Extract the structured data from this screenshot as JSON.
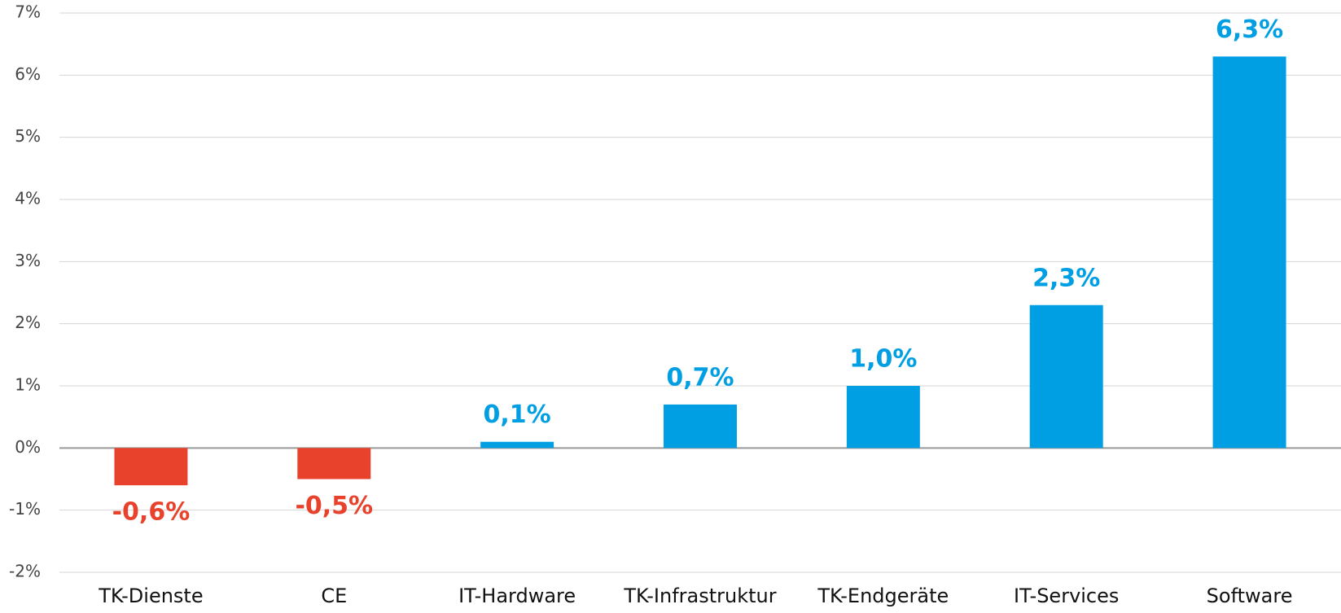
{
  "chart_data": {
    "type": "bar",
    "categories": [
      "TK-Dienste",
      "CE",
      "IT-Hardware",
      "TK-Infrastruktur",
      "TK-Endgeräte",
      "IT-Services",
      "Software"
    ],
    "values": [
      -0.6,
      -0.5,
      0.1,
      0.7,
      1.0,
      2.3,
      6.3
    ],
    "value_labels": [
      "-0,6%",
      "-0,5%",
      "0,1%",
      "0,7%",
      "1,0%",
      "2,3%",
      "6,3%"
    ],
    "colors": [
      "#e8412c",
      "#e8412c",
      "#009fe3",
      "#009fe3",
      "#009fe3",
      "#009fe3",
      "#009fe3"
    ],
    "ylim": [
      -2,
      7
    ],
    "yticks": [
      {
        "value": -2,
        "label": "-2%"
      },
      {
        "value": -1,
        "label": "-1%"
      },
      {
        "value": 0,
        "label": "0%"
      },
      {
        "value": 1,
        "label": "1%"
      },
      {
        "value": 2,
        "label": "2%"
      },
      {
        "value": 3,
        "label": "3%"
      },
      {
        "value": 4,
        "label": "4%"
      },
      {
        "value": 5,
        "label": "5%"
      },
      {
        "value": 6,
        "label": "6%"
      },
      {
        "value": 7,
        "label": "7%"
      }
    ],
    "grid": true
  }
}
